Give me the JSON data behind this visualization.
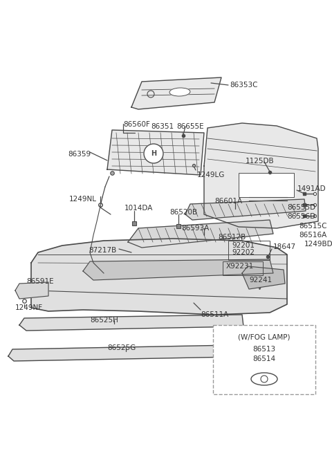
{
  "bg_color": "#ffffff",
  "lc": "#4a4a4a",
  "tc": "#333333",
  "figsize": [
    4.8,
    6.55
  ],
  "dpi": 100,
  "xlim": [
    0,
    480
  ],
  "ylim": [
    0,
    655
  ]
}
